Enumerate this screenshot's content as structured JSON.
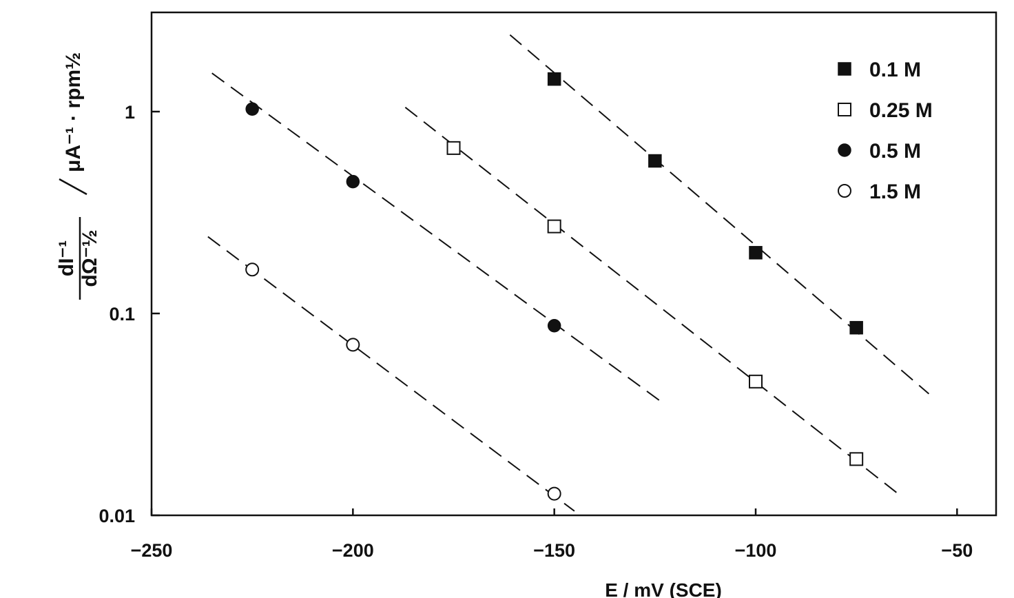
{
  "chart_data": {
    "type": "scatter",
    "xlabel": "E / mV (SCE)",
    "ylabel": {
      "numerator": "dI⁻¹",
      "denominator": "dΩ⁻½",
      "unit": "μA⁻¹ · rpm½"
    },
    "yscale": "log",
    "xlim": [
      -250,
      -40
    ],
    "ylim": [
      0.01,
      3.5
    ],
    "x_ticks": [
      -250,
      -200,
      -150,
      -100,
      -50
    ],
    "x_tick_labels": [
      "−250",
      "−200",
      "−150",
      "−100",
      "−50"
    ],
    "y_ticks": [
      1,
      0.1,
      0.01
    ],
    "y_tick_labels": [
      "1",
      "0.1",
      "0.01"
    ],
    "grid": false,
    "legend_position": "top-right",
    "series": [
      {
        "name": "0.1 M",
        "marker": "filled-square",
        "x": [
          -150,
          -125,
          -100,
          -75
        ],
        "y": [
          1.45,
          0.57,
          0.2,
          0.085
        ],
        "fit_x": [
          -161,
          -57
        ],
        "fit_y": [
          2.4,
          0.04
        ]
      },
      {
        "name": "0.25 M",
        "marker": "open-square",
        "x": [
          -175,
          -150,
          -100,
          -75
        ],
        "y": [
          0.66,
          0.27,
          0.046,
          0.019
        ],
        "fit_x": [
          -187,
          -64
        ],
        "fit_y": [
          1.05,
          0.0125
        ]
      },
      {
        "name": "0.5 M",
        "marker": "filled-circle",
        "x": [
          -225,
          -200,
          -150
        ],
        "y": [
          1.03,
          0.45,
          0.087
        ],
        "fit_x": [
          -235,
          -123
        ],
        "fit_y": [
          1.55,
          0.036
        ]
      },
      {
        "name": "1.5 M",
        "marker": "open-circle",
        "x": [
          -225,
          -200,
          -150
        ],
        "y": [
          0.165,
          0.07,
          0.0128
        ],
        "fit_x": [
          -236,
          -145
        ],
        "fit_y": [
          0.24,
          0.0105
        ]
      }
    ]
  }
}
